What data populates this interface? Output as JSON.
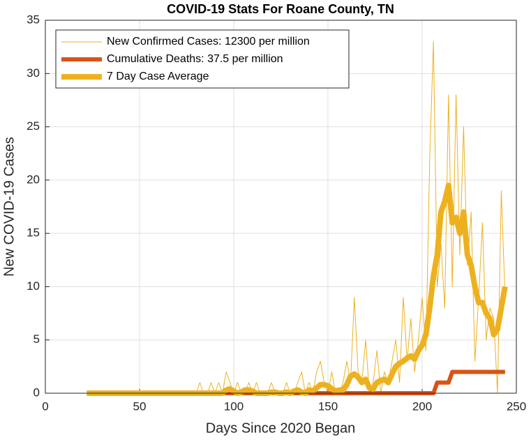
{
  "chart_data": {
    "type": "line",
    "title": "COVID-19 Stats For Roane County, TN",
    "x_label": "Days Since 2020 Began",
    "y_label": "New COVID-19 Cases",
    "x": [
      22,
      24,
      26,
      28,
      30,
      32,
      34,
      36,
      38,
      40,
      42,
      44,
      46,
      48,
      50,
      52,
      54,
      56,
      58,
      60,
      62,
      64,
      66,
      68,
      70,
      72,
      74,
      76,
      78,
      80,
      82,
      84,
      86,
      88,
      90,
      92,
      94,
      96,
      98,
      100,
      102,
      104,
      106,
      108,
      110,
      112,
      114,
      116,
      118,
      120,
      122,
      124,
      126,
      128,
      130,
      132,
      134,
      136,
      138,
      140,
      142,
      144,
      146,
      148,
      150,
      152,
      154,
      156,
      158,
      160,
      162,
      164,
      166,
      168,
      170,
      172,
      174,
      176,
      178,
      180,
      182,
      184,
      186,
      188,
      190,
      192,
      194,
      196,
      198,
      200,
      202,
      204,
      206,
      208,
      210,
      212,
      214,
      216,
      218,
      220,
      222,
      224,
      226,
      228,
      230,
      232,
      234,
      236,
      238,
      240,
      242,
      244
    ],
    "series": [
      {
        "name": "New Confirmed Cases: 12300 per million",
        "color": "#EDB120",
        "values": [
          0,
          0,
          0,
          0,
          0,
          0,
          0,
          0,
          0,
          0,
          0,
          0,
          0,
          0,
          0,
          0,
          0,
          0,
          0,
          0,
          0,
          0,
          0,
          0,
          0,
          0,
          0,
          0,
          0,
          0,
          1,
          0,
          0,
          1,
          0,
          1,
          0,
          2,
          1,
          0,
          1,
          0,
          0,
          1,
          0,
          1,
          0,
          0,
          0,
          1,
          0,
          0,
          0,
          1,
          0,
          0,
          1,
          2,
          0,
          1,
          0,
          2,
          3,
          1,
          0,
          2,
          0,
          0,
          1,
          3,
          1,
          9,
          2,
          1,
          5,
          0,
          1,
          4,
          0,
          2,
          1,
          3,
          5,
          1,
          9,
          3,
          7,
          2,
          5,
          9,
          4,
          22,
          33,
          10,
          14,
          8,
          28,
          10,
          28,
          13,
          25,
          12,
          17,
          3,
          9,
          16,
          5,
          8,
          7,
          0,
          19,
          9
        ]
      },
      {
        "name": "Cumulative Deaths: 37.5 per million",
        "color": "#D95319",
        "values": [
          0,
          0,
          0,
          0,
          0,
          0,
          0,
          0,
          0,
          0,
          0,
          0,
          0,
          0,
          0,
          0,
          0,
          0,
          0,
          0,
          0,
          0,
          0,
          0,
          0,
          0,
          0,
          0,
          0,
          0,
          0,
          0,
          0,
          0,
          0,
          0,
          0,
          0,
          0,
          0,
          0,
          0,
          0,
          0,
          0,
          0,
          0,
          0,
          0,
          0,
          0,
          0,
          0,
          0,
          0,
          0,
          0,
          0,
          0,
          0,
          0,
          0,
          0,
          0,
          0,
          0,
          0,
          0,
          0,
          0,
          0,
          0,
          0,
          0,
          0,
          0,
          0,
          0,
          0,
          0,
          0,
          0,
          0,
          0,
          0,
          0,
          0,
          0,
          0,
          0,
          0,
          0,
          0,
          1,
          1,
          1,
          1,
          2,
          2,
          2,
          2,
          2,
          2,
          2,
          2,
          2,
          2,
          2,
          2,
          2,
          2,
          2
        ]
      },
      {
        "name": "7 Day Case Average",
        "color": "#EDB120",
        "values": [
          0,
          0,
          0,
          0,
          0,
          0,
          0,
          0,
          0,
          0,
          0,
          0,
          0,
          0,
          0,
          0,
          0,
          0,
          0,
          0,
          0,
          0,
          0,
          0,
          0,
          0,
          0,
          0,
          0,
          0,
          0,
          0,
          0,
          0,
          0,
          0,
          0,
          0.3,
          0.4,
          0.2,
          0,
          0.1,
          0.3,
          0.3,
          0.2,
          0,
          0,
          0,
          0,
          0.1,
          0.1,
          0,
          0,
          0.1,
          0,
          0.2,
          0.3,
          0.1,
          0,
          0.3,
          0.2,
          0.5,
          0.8,
          0.8,
          0.7,
          0.4,
          0.2,
          0.3,
          0.3,
          0.8,
          1.6,
          1.8,
          1.5,
          1,
          1.3,
          0.5,
          0.4,
          1,
          1.2,
          1.3,
          1,
          1.8,
          2.5,
          2.8,
          3,
          3.3,
          3.5,
          3.2,
          4,
          4.5,
          5.5,
          8,
          11,
          13,
          17,
          18,
          19.5,
          16,
          16.5,
          15,
          17,
          13,
          12,
          10,
          8.5,
          8.5,
          7.5,
          7,
          5.5,
          6,
          8,
          10
        ]
      }
    ],
    "xlim": [
      0,
      250
    ],
    "xticks": [
      0,
      50,
      100,
      150,
      200,
      250
    ],
    "ylim": [
      0,
      35
    ],
    "yticks": [
      0,
      5,
      10,
      15,
      20,
      25,
      30,
      35
    ],
    "grid": true,
    "legend": "upper left"
  }
}
